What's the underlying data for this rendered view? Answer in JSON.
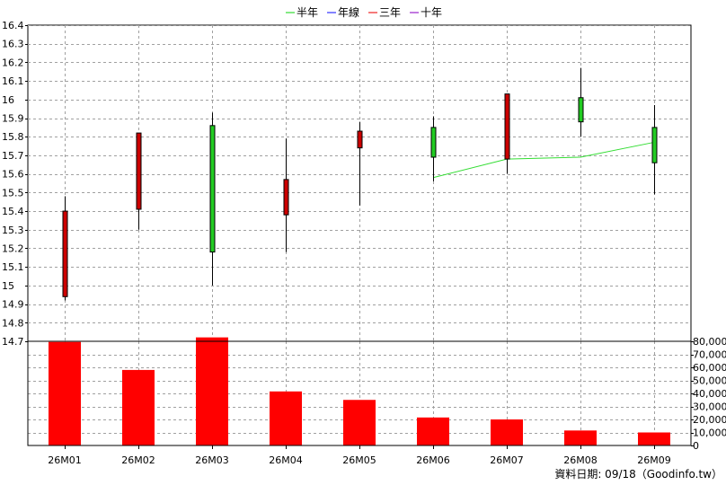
{
  "chart_data": [
    {
      "type": "candlestick",
      "legend": [
        {
          "label": "半年",
          "color": "#33dd33"
        },
        {
          "label": "年線",
          "color": "#3333ff"
        },
        {
          "label": "三年",
          "color": "#ee2222"
        },
        {
          "label": "十年",
          "color": "#9922cc"
        }
      ],
      "legend_position": "top-center",
      "categories": [
        "26M01",
        "26M02",
        "26M03",
        "26M04",
        "26M05",
        "26M06",
        "26M07",
        "26M08",
        "26M09"
      ],
      "candles": [
        {
          "open": 14.94,
          "close": 15.4,
          "high": 15.48,
          "low": 14.92
        },
        {
          "open": 15.41,
          "close": 15.82,
          "high": 15.82,
          "low": 15.3
        },
        {
          "open": 15.86,
          "close": 15.18,
          "high": 15.93,
          "low": 15.0
        },
        {
          "open": 15.38,
          "close": 15.57,
          "high": 15.79,
          "low": 15.18
        },
        {
          "open": 15.74,
          "close": 15.83,
          "high": 15.88,
          "low": 15.43
        },
        {
          "open": 15.85,
          "close": 15.69,
          "high": 15.91,
          "low": 15.56
        },
        {
          "open": 15.68,
          "close": 16.03,
          "high": 16.03,
          "low": 15.6
        },
        {
          "open": 16.01,
          "close": 15.88,
          "high": 16.17,
          "low": 15.8
        },
        {
          "open": 15.85,
          "close": 15.66,
          "high": 15.97,
          "low": 15.49
        }
      ],
      "ma_half_year": [
        null,
        null,
        null,
        null,
        null,
        15.58,
        15.68,
        15.69,
        15.77
      ],
      "y_ticks": [
        "14.7",
        "14.8",
        "14.9",
        "15",
        "15.1",
        "15.2",
        "15.3",
        "15.4",
        "15.5",
        "15.6",
        "15.7",
        "15.8",
        "15.9",
        "16",
        "16.1",
        "16.2",
        "16.3",
        "16.4"
      ],
      "ylim": [
        14.7,
        16.4
      ],
      "up_color": "#cc0000",
      "down_color": "#22cc22",
      "grid": true
    },
    {
      "type": "bar",
      "categories": [
        "26M01",
        "26M02",
        "26M03",
        "26M04",
        "26M05",
        "26M06",
        "26M07",
        "26M08",
        "26M09"
      ],
      "values": [
        79500,
        58000,
        83000,
        41500,
        35000,
        21500,
        20000,
        11500,
        10000
      ],
      "y_ticks": [
        "0",
        "10,000",
        "20,000",
        "30,000",
        "40,000",
        "50,000",
        "60,000",
        "70,000",
        "80,000"
      ],
      "ylim": [
        0,
        80000
      ],
      "bar_color": "#ff0000",
      "grid": true
    }
  ],
  "credit": "資料日期: 09/18（Goodinfo.tw）"
}
